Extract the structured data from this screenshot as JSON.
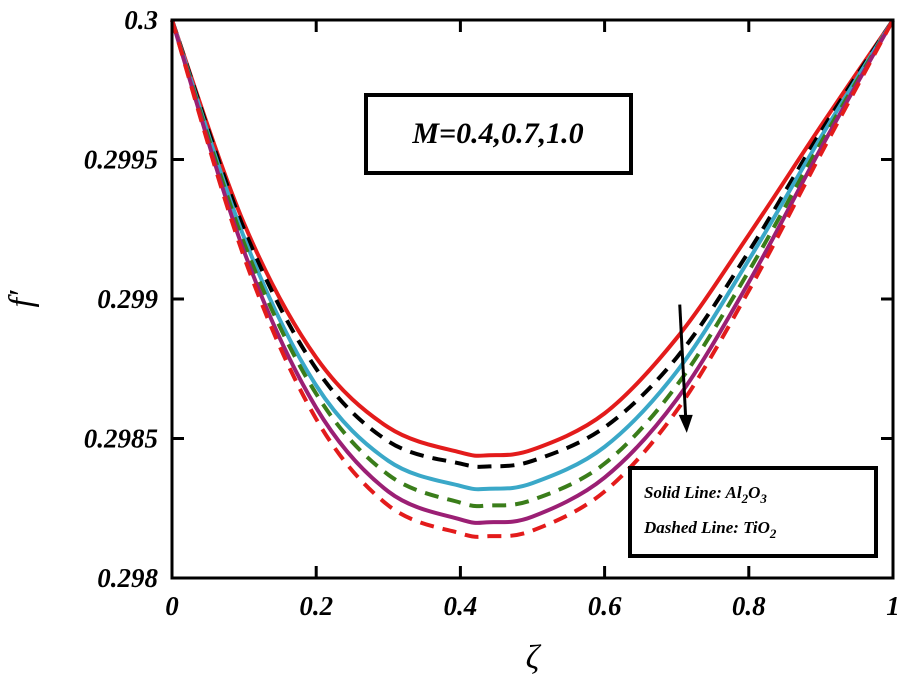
{
  "chart_data": {
    "type": "line",
    "title": "",
    "xlabel": "ζ",
    "ylabel": "f′",
    "xlim": [
      0,
      1
    ],
    "ylim": [
      0.298,
      0.3
    ],
    "x_ticks": [
      "0",
      "0.2",
      "0.4",
      "0.6",
      "0.8",
      "1"
    ],
    "y_ticks": [
      "0.298",
      "0.2985",
      "0.299",
      "0.2995",
      "0.3"
    ],
    "grid": false,
    "annotation": "M=0.4,0.7,1.0",
    "arrow": {
      "from": [
        0.75,
        0.29898
      ],
      "to": [
        0.75,
        0.29852
      ],
      "meaning": "increasing M"
    },
    "legend": {
      "position": "bottom-right",
      "solid_prefix": "Solid Line: Al",
      "solid_sub1": "2",
      "solid_mid": "O",
      "solid_sub2": "3",
      "dashed_prefix": "Dashed Line: TiO",
      "dashed_sub": "2"
    },
    "series": [
      {
        "name": "Al2O3, M=0.4",
        "style": "solid",
        "color": "#e31b1b",
        "x": [
          0,
          0.1,
          0.2,
          0.3,
          0.4,
          0.44,
          0.5,
          0.6,
          0.7,
          0.8,
          0.9,
          1
        ],
        "y": [
          0.3,
          0.29927,
          0.29879,
          0.29854,
          0.29845,
          0.29844,
          0.29846,
          0.29859,
          0.29886,
          0.29923,
          0.29962,
          0.3
        ]
      },
      {
        "name": "TiO2, M=0.4",
        "style": "dashed",
        "color": "#000000",
        "x": [
          0,
          0.1,
          0.2,
          0.3,
          0.4,
          0.44,
          0.5,
          0.6,
          0.7,
          0.8,
          0.9,
          1
        ],
        "y": [
          0.3,
          0.29925,
          0.29875,
          0.29849,
          0.29841,
          0.2984,
          0.29842,
          0.29854,
          0.29879,
          0.29917,
          0.2996,
          0.3
        ]
      },
      {
        "name": "Al2O3, M=0.7",
        "style": "solid",
        "color": "#3aa8c8",
        "x": [
          0,
          0.1,
          0.2,
          0.3,
          0.4,
          0.44,
          0.5,
          0.6,
          0.7,
          0.8,
          0.9,
          1
        ],
        "y": [
          0.3,
          0.29922,
          0.29869,
          0.29842,
          0.29833,
          0.29832,
          0.29834,
          0.29847,
          0.29874,
          0.29914,
          0.29958,
          0.3
        ]
      },
      {
        "name": "TiO2, M=0.7",
        "style": "dashed",
        "color": "#3a7d1a",
        "x": [
          0,
          0.1,
          0.2,
          0.3,
          0.4,
          0.44,
          0.5,
          0.6,
          0.7,
          0.8,
          0.9,
          1
        ],
        "y": [
          0.3,
          0.2992,
          0.29866,
          0.29837,
          0.29827,
          0.29826,
          0.29828,
          0.29841,
          0.29869,
          0.2991,
          0.29956,
          0.3
        ]
      },
      {
        "name": "Al2O3, M=1.0",
        "style": "solid",
        "color": "#9b1f74",
        "x": [
          0,
          0.1,
          0.2,
          0.3,
          0.4,
          0.44,
          0.5,
          0.6,
          0.7,
          0.8,
          0.9,
          1
        ],
        "y": [
          0.3,
          0.29917,
          0.29861,
          0.29831,
          0.29821,
          0.2982,
          0.29822,
          0.29836,
          0.29864,
          0.29906,
          0.29954,
          0.3
        ]
      },
      {
        "name": "TiO2, M=1.0",
        "style": "dashed",
        "color": "#e31b1b",
        "x": [
          0,
          0.1,
          0.2,
          0.3,
          0.4,
          0.44,
          0.5,
          0.6,
          0.7,
          0.8,
          0.9,
          1
        ],
        "y": [
          0.3,
          0.29915,
          0.29857,
          0.29826,
          0.29816,
          0.29815,
          0.29817,
          0.29831,
          0.2986,
          0.29903,
          0.29952,
          0.3
        ]
      }
    ]
  }
}
